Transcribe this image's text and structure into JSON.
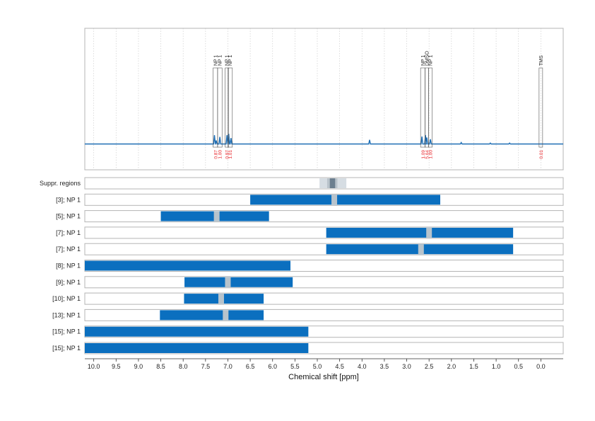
{
  "chart_data": {
    "type": "nmr-spectrum-with-range-bars",
    "xlabel": "Chemical shift [ppm]",
    "xlim": [
      10.2,
      -0.5
    ],
    "x_ticks": [
      "10.0",
      "9.5",
      "9.0",
      "8.5",
      "8.0",
      "7.5",
      "7.0",
      "6.5",
      "6.0",
      "5.5",
      "5.0",
      "4.5",
      "4.0",
      "3.5",
      "3.0",
      "2.5",
      "2.0",
      "1.5",
      "1.0",
      "0.5",
      "0.0"
    ],
    "grid": "vertical dotted",
    "colors": {
      "spectrum": "#1f6fb5",
      "bar": "#0b6fbf",
      "marker": "#b7c3cc",
      "integral": "#e8262b",
      "suppr_light": "#d6dde3",
      "suppr_mid": "#b9c3cb",
      "suppr_dark": "#6c7f8f"
    },
    "spectrum_peaks": [
      {
        "x": 7.3,
        "h": 0.3
      },
      {
        "x": 7.26,
        "h": 0.12
      },
      {
        "x": 7.18,
        "h": 0.24
      },
      {
        "x": 7.02,
        "h": 0.3
      },
      {
        "x": 6.98,
        "h": 0.34
      },
      {
        "x": 6.93,
        "h": 0.2
      },
      {
        "x": 3.83,
        "h": 0.14
      },
      {
        "x": 2.66,
        "h": 0.25
      },
      {
        "x": 2.58,
        "h": 0.3
      },
      {
        "x": 2.55,
        "h": 0.22
      },
      {
        "x": 2.47,
        "h": 0.16
      },
      {
        "x": 1.78,
        "h": 0.05
      },
      {
        "x": 1.13,
        "h": 0.03
      },
      {
        "x": 0.7,
        "h": 0.03
      }
    ],
    "peak_annotations": [
      {
        "label": "NP 1",
        "x": 7.28,
        "width": 0.1,
        "integral": "0.87"
      },
      {
        "label": "NP 1",
        "x": 7.18,
        "width": 0.1,
        "integral": "1.00"
      },
      {
        "label": "NP 1",
        "x": 7.02,
        "width": 0.08,
        "integral": "0.97"
      },
      {
        "label": "NP 1",
        "x": 6.95,
        "width": 0.1,
        "integral": "1.01"
      },
      {
        "label": "NP 1",
        "x": 2.64,
        "width": 0.1,
        "integral": "1.09"
      },
      {
        "label": "DMSO",
        "x": 2.55,
        "width": 0.06,
        "integral": "5.64"
      },
      {
        "label": "NP 1",
        "x": 2.47,
        "width": 0.08,
        "integral": "1.00"
      },
      {
        "label": "TMS",
        "x": 0.0,
        "width": 0.05,
        "integral": "0.01"
      }
    ],
    "suppression_region": {
      "label": "Suppr. regions",
      "outer": [
        4.95,
        4.35
      ],
      "inner": [
        4.78,
        4.55
      ],
      "core": [
        4.72,
        4.6
      ]
    },
    "range_rows": [
      {
        "label": "[3]; NP 1",
        "start": 6.5,
        "end": 2.25,
        "marker": 4.62
      },
      {
        "label": "[5]; NP 1",
        "start": 8.5,
        "end": 6.08,
        "marker": 7.25
      },
      {
        "label": "[7]; NP 1",
        "start": 4.8,
        "end": 0.62,
        "marker": 2.5
      },
      {
        "label": "[7]; NP 1",
        "start": 4.8,
        "end": 0.62,
        "marker": 2.68
      },
      {
        "label": "[8]; NP 1",
        "start": 10.2,
        "end": 5.6,
        "marker": null
      },
      {
        "label": "[9]; NP 1",
        "start": 7.97,
        "end": 5.55,
        "marker": 7.0
      },
      {
        "label": "[10]; NP 1",
        "start": 7.98,
        "end": 6.2,
        "marker": 7.15
      },
      {
        "label": "[13]; NP 1",
        "start": 8.52,
        "end": 6.2,
        "marker": 7.05
      },
      {
        "label": "[15]; NP 1",
        "start": 10.2,
        "end": 5.2,
        "marker": null
      },
      {
        "label": "[15]; NP 1",
        "start": 10.2,
        "end": 5.2,
        "marker": null
      }
    ]
  }
}
